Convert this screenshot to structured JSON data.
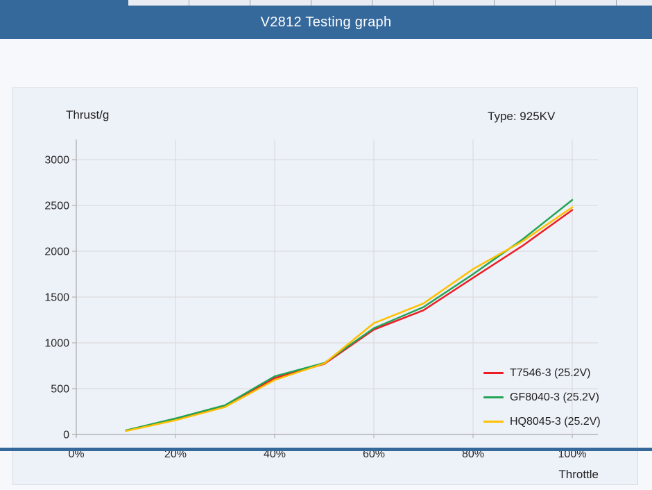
{
  "header": {
    "title": "V2812 Testing graph"
  },
  "chart": {
    "y_axis_title": "Thrust/g",
    "type_label": "Type: 925KV",
    "x_axis_title": "Throttle"
  },
  "chart_data": {
    "type": "line",
    "title": "V2812 Testing graph",
    "subtitle": "Type: 925KV",
    "xlabel": "Throttle",
    "ylabel": "Thrust/g",
    "x_unit": "percent throttle",
    "x": [
      10,
      20,
      30,
      40,
      50,
      60,
      70,
      80,
      90,
      100
    ],
    "series": [
      {
        "name": "T7546-3 (25.2V)",
        "color": "#ee1c25",
        "values": [
          40,
          165,
          310,
          615,
          770,
          1145,
          1355,
          1710,
          2060,
          2450
        ]
      },
      {
        "name": "GF8040-3 (25.2V)",
        "color": "#23a455",
        "values": [
          45,
          175,
          320,
          635,
          780,
          1160,
          1390,
          1750,
          2130,
          2560
        ]
      },
      {
        "name": "HQ8045-3 (25.2V)",
        "color": "#ffc000",
        "values": [
          38,
          155,
          300,
          595,
          775,
          1215,
          1430,
          1805,
          2110,
          2480
        ]
      }
    ],
    "xlim": [
      0,
      100
    ],
    "ylim": [
      0,
      3000
    ],
    "x_ticks": [
      "0%",
      "20%",
      "40%",
      "60%",
      "80%",
      "100%"
    ],
    "x_tick_values": [
      0,
      20,
      40,
      60,
      80,
      100
    ],
    "y_ticks": [
      0,
      500,
      1000,
      1500,
      2000,
      2500,
      3000
    ],
    "grid": true,
    "legend_position": "inside-lower-right"
  },
  "colors": {
    "header_bg": "#35689b",
    "header_text": "#ffffff",
    "page_bg": "#f7f8fb",
    "panel_bg": "#edf1f8",
    "panel_border": "#d5dae3",
    "grid": "#d8d8d8",
    "axis": "#a8a8a8",
    "text": "#1f1f1f",
    "series_red": "#ee1c25",
    "series_green": "#23a455",
    "series_yellow": "#ffc000"
  }
}
